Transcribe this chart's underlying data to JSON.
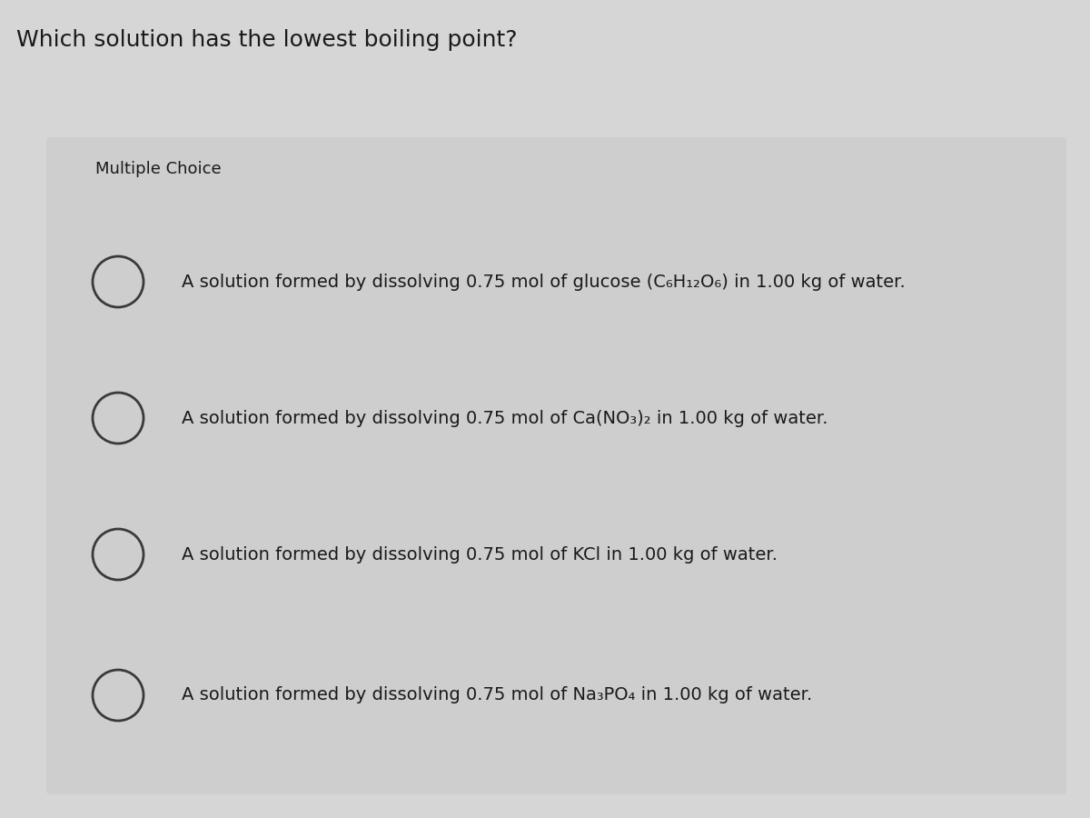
{
  "title": "Which solution has the lowest boiling point?",
  "subtitle": "Multiple Choice",
  "options": [
    "A solution formed by dissolving 0.75 mol of glucose (C₆H₁₂O₆) in 1.00 kg of water.",
    "A solution formed by dissolving 0.75 mol of Ca(NO₃)₂ in 1.00 kg of water.",
    "A solution formed by dissolving 0.75 mol of KCl in 1.00 kg of water.",
    "A solution formed by dissolving 0.75 mol of Na₃PO₄ in 1.00 kg of water."
  ],
  "outer_bg": "#d6d6d6",
  "box_bg": "#cecece",
  "title_color": "#1a1a1a",
  "text_color": "#1a1a1a",
  "circle_color": "#3a3a3a",
  "title_fontsize": 18,
  "subtitle_fontsize": 13,
  "option_fontsize": 14
}
